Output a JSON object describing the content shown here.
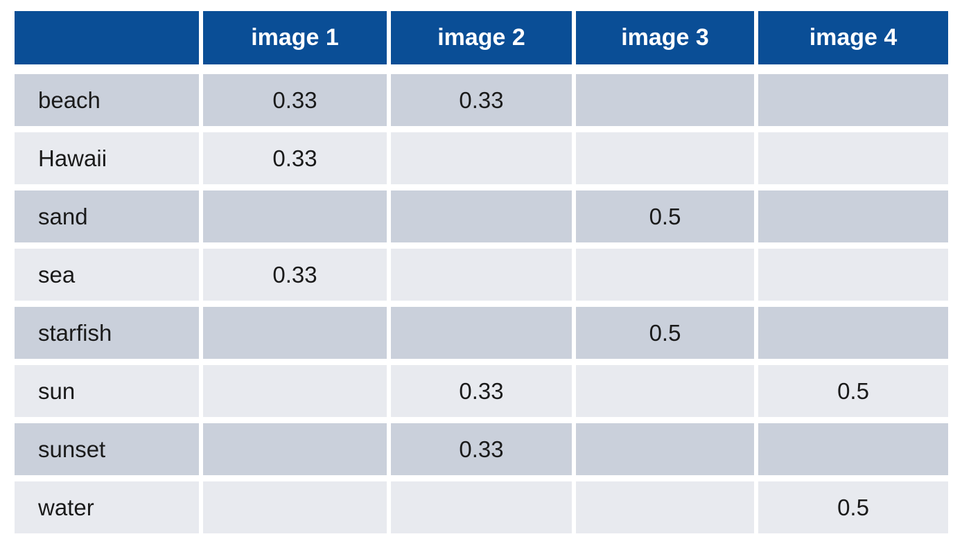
{
  "page": {
    "background": "#ffffff"
  },
  "colors": {
    "header_bg": "#0a4e96",
    "header_text": "#ffffff",
    "row_dark": "#cad0db",
    "row_light": "#e8eaef",
    "cell_text": "#1a1a1a"
  },
  "chart_data": {
    "type": "table",
    "columns": [
      "",
      "image 1",
      "image 2",
      "image 3",
      "image 4"
    ],
    "rows": [
      {
        "term": "beach",
        "values": [
          "0.33",
          "0.33",
          "",
          ""
        ]
      },
      {
        "term": "Hawaii",
        "values": [
          "0.33",
          "",
          "",
          ""
        ]
      },
      {
        "term": "sand",
        "values": [
          "",
          "",
          "0.5",
          ""
        ]
      },
      {
        "term": "sea",
        "values": [
          "0.33",
          "",
          "",
          ""
        ]
      },
      {
        "term": "starfish",
        "values": [
          "",
          "",
          "0.5",
          ""
        ]
      },
      {
        "term": "sun",
        "values": [
          "",
          "0.33",
          "",
          "0.5"
        ]
      },
      {
        "term": "sunset",
        "values": [
          "",
          "0.33",
          "",
          ""
        ]
      },
      {
        "term": "water",
        "values": [
          "",
          "",
          "",
          "0.5"
        ]
      }
    ],
    "layout": {
      "striped": true,
      "first_row_shade": "dark",
      "value_align": "center",
      "term_align": "left"
    }
  }
}
